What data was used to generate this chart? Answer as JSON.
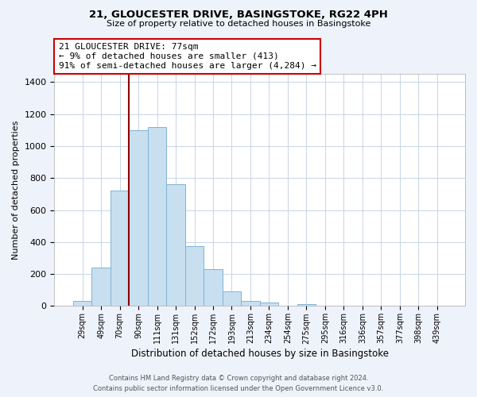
{
  "title": "21, GLOUCESTER DRIVE, BASINGSTOKE, RG22 4PH",
  "subtitle": "Size of property relative to detached houses in Basingstoke",
  "xlabel": "Distribution of detached houses by size in Basingstoke",
  "ylabel": "Number of detached properties",
  "bar_labels": [
    "29sqm",
    "49sqm",
    "70sqm",
    "90sqm",
    "111sqm",
    "131sqm",
    "152sqm",
    "172sqm",
    "193sqm",
    "213sqm",
    "234sqm",
    "254sqm",
    "275sqm",
    "295sqm",
    "316sqm",
    "336sqm",
    "357sqm",
    "377sqm",
    "398sqm",
    "439sqm"
  ],
  "bar_values": [
    30,
    240,
    720,
    1100,
    1120,
    760,
    375,
    230,
    90,
    30,
    20,
    0,
    10,
    0,
    0,
    0,
    0,
    0,
    0,
    0
  ],
  "bar_color": "#c8dff0",
  "bar_edge_color": "#7fb3d3",
  "annotation_box_text": "21 GLOUCESTER DRIVE: 77sqm\n← 9% of detached houses are smaller (413)\n91% of semi-detached houses are larger (4,284) →",
  "vline_color": "#8b0000",
  "vline_x_index": 2.5,
  "ylim": [
    0,
    1450
  ],
  "yticks": [
    0,
    200,
    400,
    600,
    800,
    1000,
    1200,
    1400
  ],
  "footer_line1": "Contains HM Land Registry data © Crown copyright and database right 2024.",
  "footer_line2": "Contains public sector information licensed under the Open Government Licence v3.0.",
  "bg_color": "#eef2fb",
  "plot_bg_color": "#ffffff",
  "annotation_box_bg": "#ffffff",
  "annotation_box_edge": "#cc0000",
  "grid_color": "#c8d4e8"
}
